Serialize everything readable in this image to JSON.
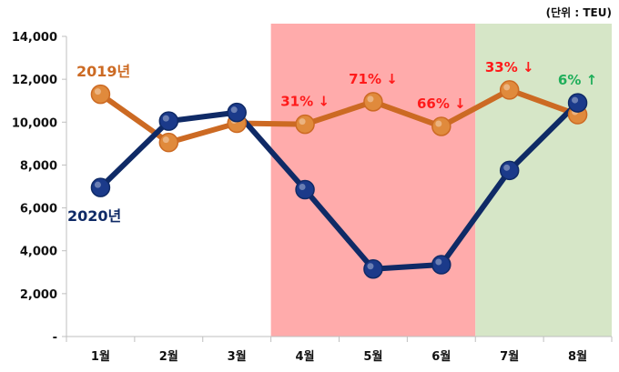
{
  "chart_data": {
    "type": "line",
    "unit_label": "(단위 : TEU)",
    "categories": [
      "1월",
      "2월",
      "3월",
      "4월",
      "5월",
      "6월",
      "7월",
      "8월"
    ],
    "ylim": [
      0,
      14000
    ],
    "yticks": [
      0,
      2000,
      4000,
      6000,
      8000,
      10000,
      12000,
      14000
    ],
    "ytick_labels": [
      "-",
      "2,000",
      "4,000",
      "6,000",
      "8,000",
      "10,000",
      "12,000",
      "14,000"
    ],
    "grid": false,
    "series": [
      {
        "name": "2019년",
        "color": "#cc6a23",
        "marker_color": "#e08a3c",
        "values": [
          11300,
          9050,
          9950,
          9900,
          10950,
          9800,
          11500,
          10350
        ]
      },
      {
        "name": "2020년",
        "color": "#0f2a66",
        "marker_color": "#1b3a8a",
        "values": [
          6950,
          10050,
          10450,
          6850,
          3150,
          3350,
          7750,
          10900
        ]
      }
    ],
    "highlight_bands": [
      {
        "from": "4월",
        "to": "6월",
        "color": "#ffabab"
      },
      {
        "from": "7월",
        "to": "8월",
        "color": "#d6e6c7"
      }
    ],
    "annotations": [
      {
        "category": "4월",
        "text": "31% ↓",
        "color": "#ff1a1a"
      },
      {
        "category": "5월",
        "text": "71% ↓",
        "color": "#ff1a1a"
      },
      {
        "category": "6월",
        "text": "66% ↓",
        "color": "#ff1a1a"
      },
      {
        "category": "7월",
        "text": "33% ↓",
        "color": "#ff1a1a"
      },
      {
        "category": "8월",
        "text": "6% ↑",
        "color": "#1fae5a"
      }
    ]
  }
}
